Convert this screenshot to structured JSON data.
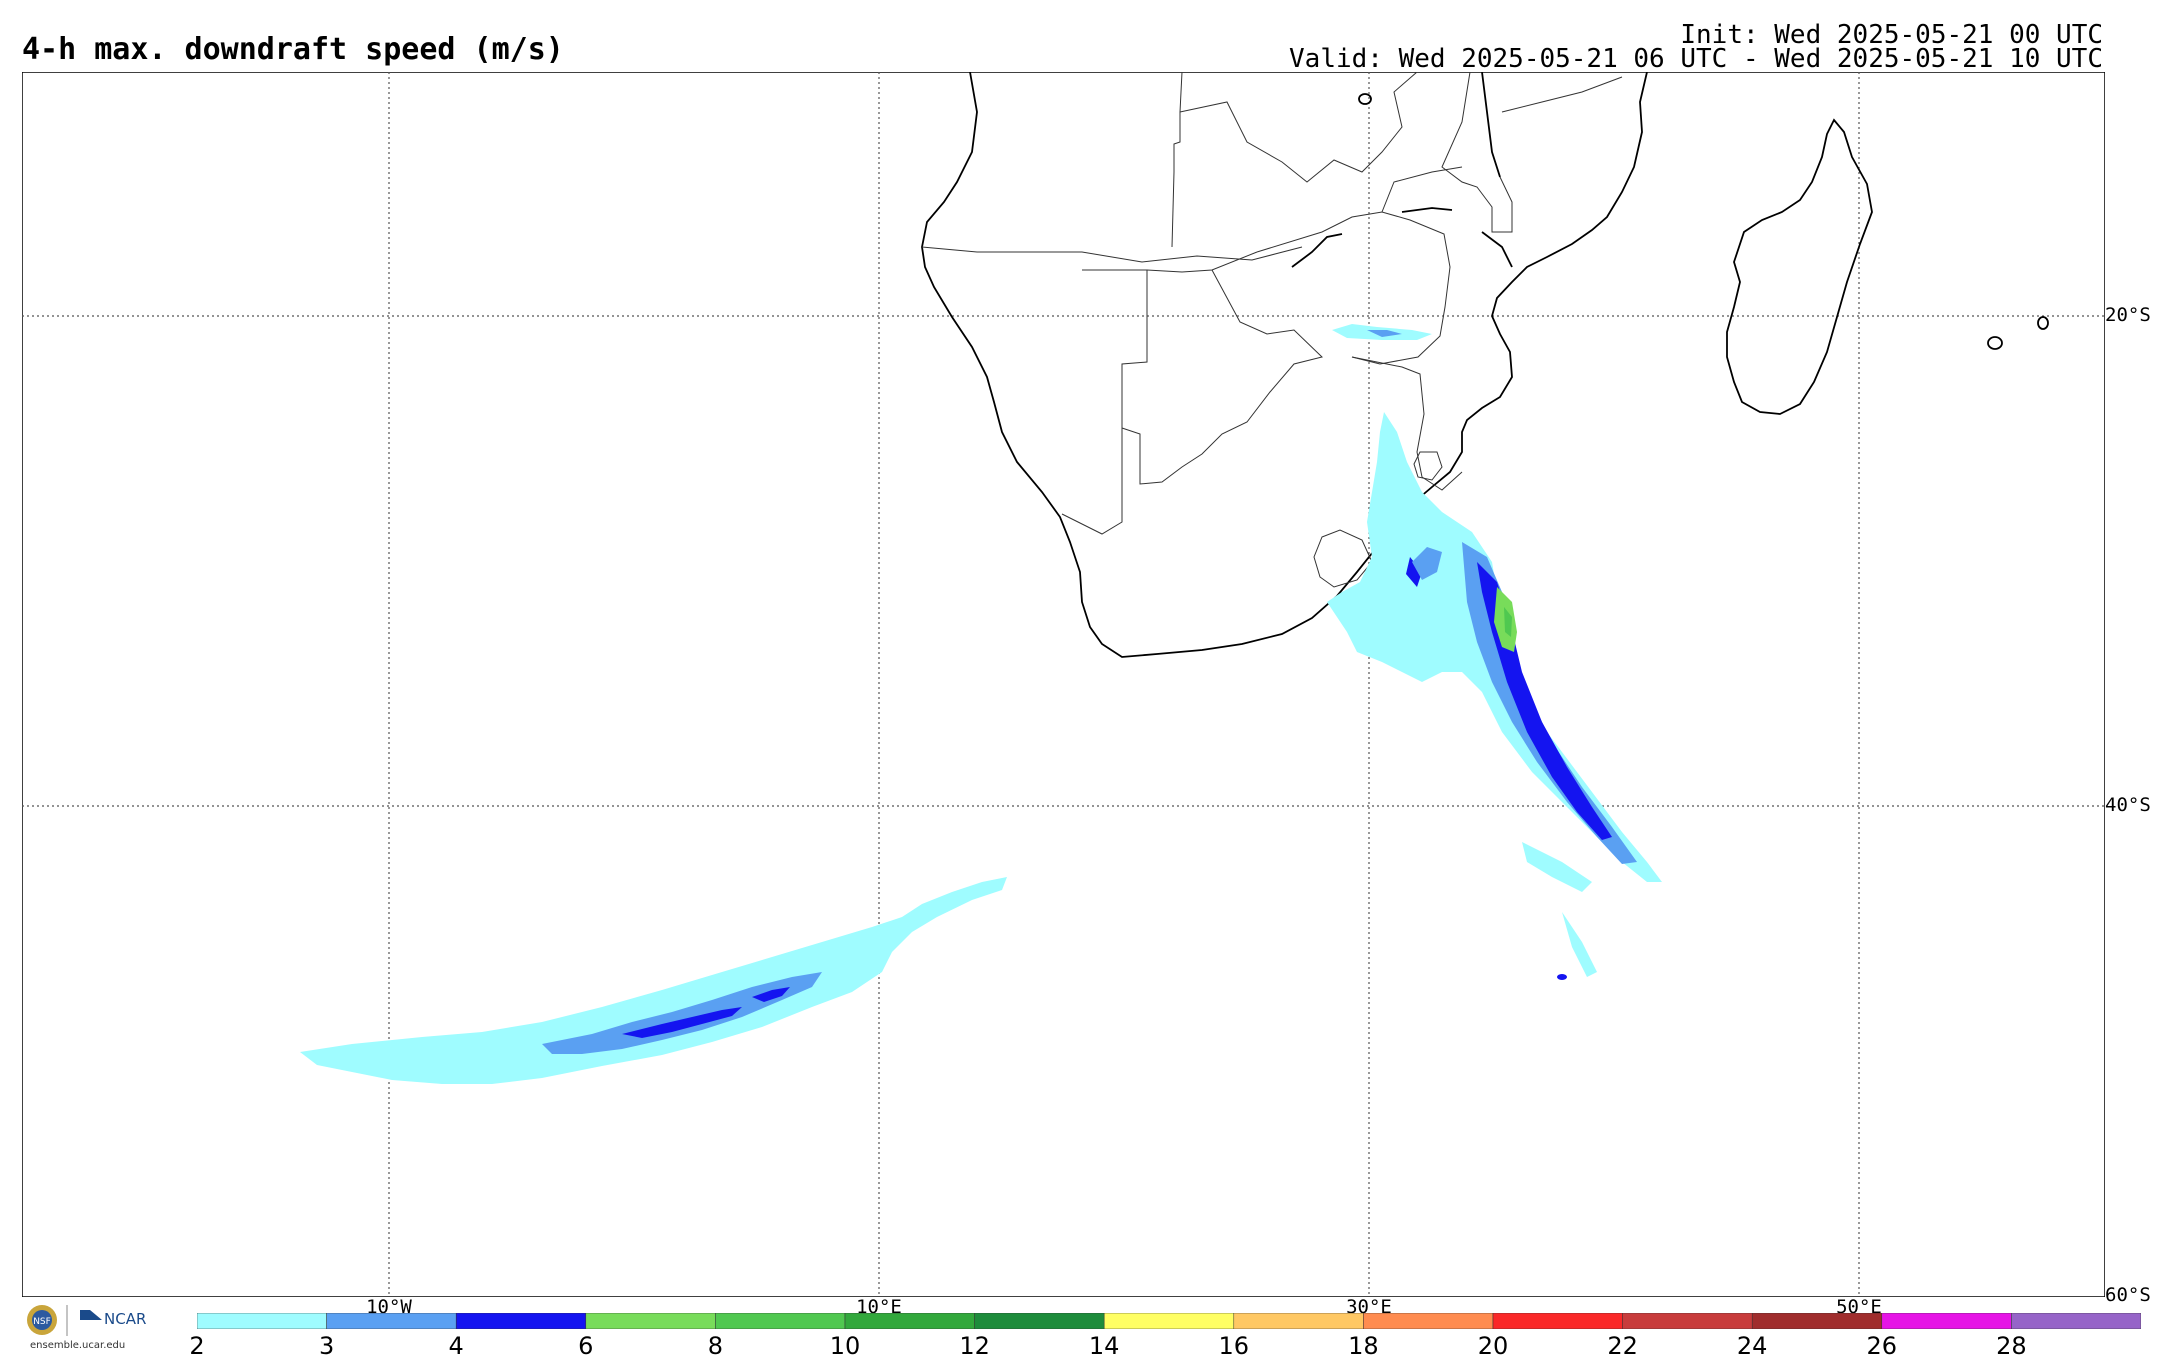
{
  "header": {
    "title": "4-h max. downdraft speed (m/s)",
    "init": "Init: Wed 2025-05-21 00 UTC",
    "valid": "Valid: Wed 2025-05-21 06 UTC - Wed 2025-05-21 10 UTC"
  },
  "map": {
    "lat_labels": [
      "20°S",
      "40°S",
      "60°S"
    ],
    "lon_labels": [
      "10°W",
      "10°E",
      "30°E",
      "50°E"
    ],
    "grid_lines": "dotted"
  },
  "colorbar": {
    "ticks": [
      "2",
      "3",
      "4",
      "6",
      "8",
      "10",
      "12",
      "14",
      "16",
      "18",
      "20",
      "22",
      "24",
      "26",
      "28"
    ],
    "colors": [
      "#9ffcff",
      "#5aa0f2",
      "#1414f0",
      "#78dc5a",
      "#50c850",
      "#32a83c",
      "#1e8c3c",
      "#ffff64",
      "#ffc864",
      "#ff8c50",
      "#fa2828",
      "#c83c3c",
      "#a02d2d",
      "#e614e6",
      "#9664c8"
    ]
  },
  "branding": {
    "nsf": "NSF",
    "ncar": "NCAR",
    "site": "ensemble.ucar.edu"
  }
}
